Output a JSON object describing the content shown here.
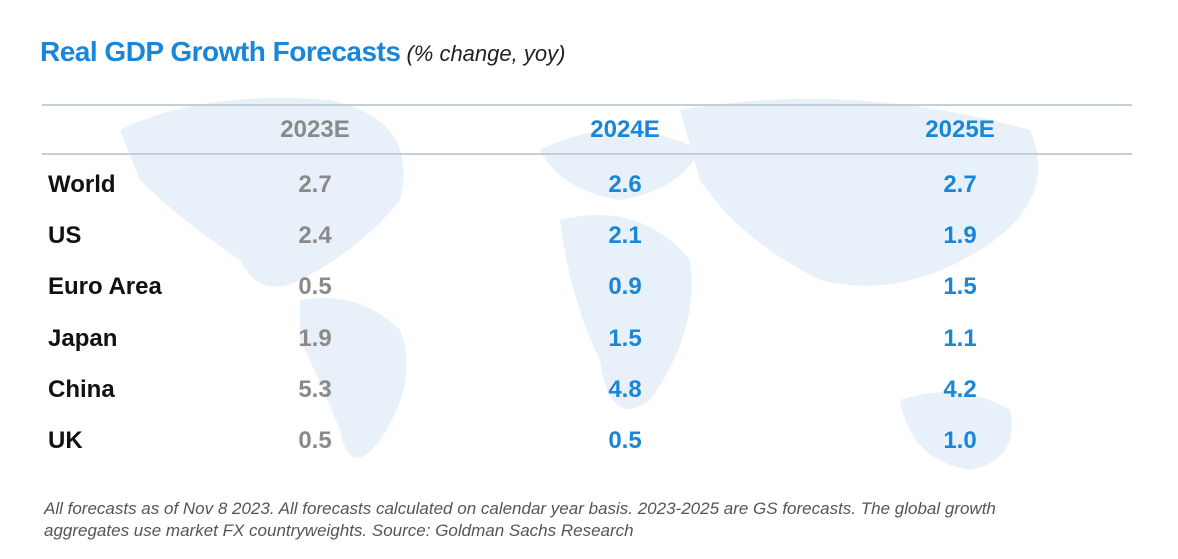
{
  "header": {
    "title": "Real GDP Growth Forecasts",
    "subtitle": "(% change, yoy)"
  },
  "table": {
    "columns": [
      "2023E",
      "2024E",
      "2025E"
    ],
    "rows": [
      {
        "label": "World",
        "values": [
          "2.7",
          "2.6",
          "2.7"
        ]
      },
      {
        "label": "US",
        "values": [
          "2.4",
          "2.1",
          "1.9"
        ]
      },
      {
        "label": "Euro Area",
        "values": [
          "0.5",
          "0.9",
          "1.5"
        ]
      },
      {
        "label": "Japan",
        "values": [
          "1.9",
          "1.5",
          "1.1"
        ]
      },
      {
        "label": "China",
        "values": [
          "5.3",
          "4.8",
          "4.2"
        ]
      },
      {
        "label": "UK",
        "values": [
          "0.5",
          "0.5",
          "1.0"
        ]
      }
    ]
  },
  "footnote": [
    "All forecasts as of Nov 8 2023. All forecasts calculated on calendar year basis. 2023-2025 are GS forecasts. The global growth",
    "aggregates use market FX countryweights. Source: Goldman Sachs Research"
  ]
}
